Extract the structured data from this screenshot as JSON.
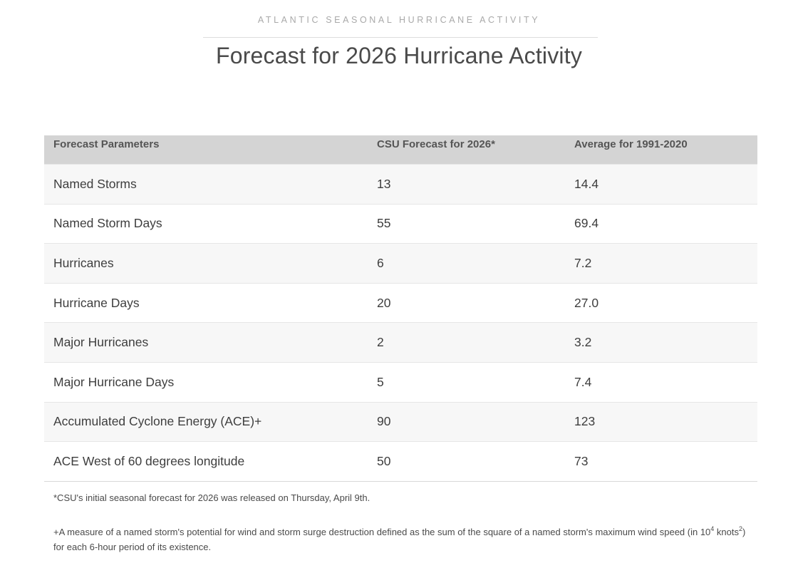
{
  "header": {
    "eyebrow": "ATLANTIC SEASONAL HURRICANE ACTIVITY",
    "title": "Forecast for 2026 Hurricane Activity"
  },
  "table": {
    "columns": [
      "Forecast Parameters",
      "CSU Forecast for 2026*",
      "Average for 1991-2020"
    ],
    "rows": [
      {
        "parameter": "Named Storms",
        "forecast": "13",
        "average": "14.4"
      },
      {
        "parameter": "Named Storm Days",
        "forecast": "55",
        "average": "69.4"
      },
      {
        "parameter": "Hurricanes",
        "forecast": "6",
        "average": "7.2"
      },
      {
        "parameter": "Hurricane Days",
        "forecast": "20",
        "average": "27.0"
      },
      {
        "parameter": "Major Hurricanes",
        "forecast": "2",
        "average": "3.2"
      },
      {
        "parameter": "Major Hurricane Days",
        "forecast": "5",
        "average": "7.4"
      },
      {
        "parameter": "Accumulated Cyclone Energy (ACE)+",
        "forecast": "90",
        "average": "123"
      },
      {
        "parameter": "ACE West of 60 degrees longitude",
        "forecast": "50",
        "average": "73"
      }
    ]
  },
  "footnotes": {
    "release": "*CSU's initial seasonal forecast for 2026 was released on Thursday, April 9th.",
    "ace_part1": "+A measure of a named storm's potential for wind and storm surge destruction defined as the sum of the square of a named storm's maximum wind speed (in 10",
    "ace_exp1": "4",
    "ace_part2": " knots",
    "ace_exp2": "2",
    "ace_part3": ") for each 6-hour period of its existence."
  },
  "colors": {
    "header_row_bg": "#d4d4d4",
    "stripe_bg": "#f7f7f7",
    "eyebrow_text": "#a9a9a9",
    "body_text": "#3e3e3e"
  }
}
